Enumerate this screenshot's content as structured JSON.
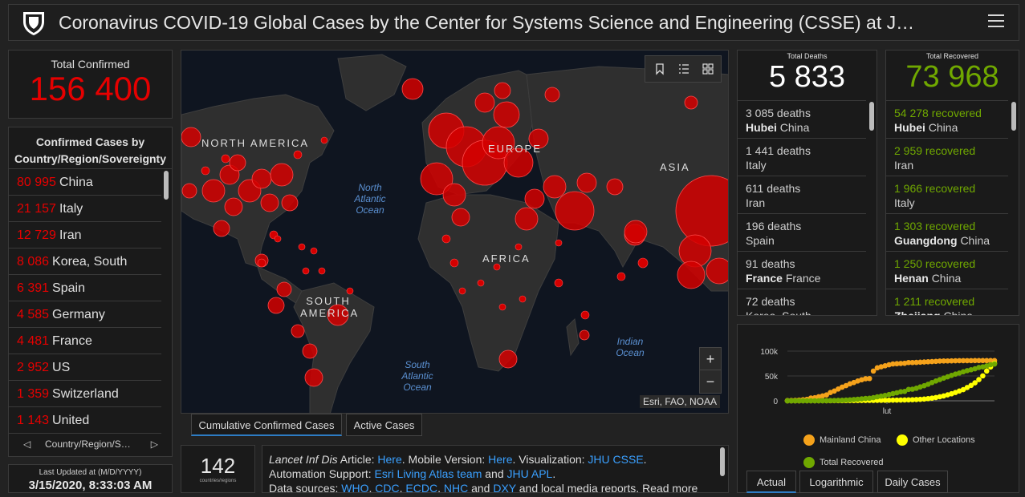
{
  "header": {
    "title": "Coronavirus COVID-19 Global Cases by the Center for Systems Science and Engineering (CSSE) at J…"
  },
  "total_confirmed": {
    "label": "Total Confirmed",
    "value": "156 400"
  },
  "country_panel": {
    "header": "Confirmed Cases by Country/Region/Sovereignty",
    "rows": [
      {
        "value": "80 995",
        "name": "China"
      },
      {
        "value": "21 157",
        "name": "Italy"
      },
      {
        "value": "12 729",
        "name": "Iran"
      },
      {
        "value": "8 086",
        "name": "Korea, South"
      },
      {
        "value": "6 391",
        "name": "Spain"
      },
      {
        "value": "4 585",
        "name": "Germany"
      },
      {
        "value": "4 481",
        "name": "France"
      },
      {
        "value": "2 952",
        "name": "US"
      },
      {
        "value": "1 359",
        "name": "Switzerland"
      },
      {
        "value": "1 143",
        "name": "United"
      }
    ],
    "pager_label": "Country/Region/S…"
  },
  "last_updated": {
    "label": "Last Updated at (M/D/YYYY)",
    "value": "3/15/2020, 8:33:03 AM"
  },
  "map": {
    "labels": {
      "north_america": "NORTH AMERICA",
      "europe": "EUROPE",
      "asia": "ASIA",
      "africa": "AFRICA",
      "south_america": "SOUTH AMERICA"
    },
    "oceans": {
      "north_atlantic": "North Atlantic Ocean",
      "south_atlantic": "South Atlantic Ocean",
      "indian": "Indian Ocean"
    },
    "attribution": "Esri, FAO, NOAA",
    "zoom_in": "+",
    "zoom_out": "−",
    "bubble_color": "#e60000"
  },
  "map_tabs": [
    {
      "label": "Cumulative Confirmed Cases",
      "active": true
    },
    {
      "label": "Active Cases",
      "active": false
    }
  ],
  "countries_count": {
    "value": "142",
    "sublabel": "countries/regions"
  },
  "info": {
    "journal": "Lancet Inf Dis",
    "article_prefix": " Article: ",
    "here1": "Here",
    "mobile": ". Mobile Version: ",
    "here2": "Here",
    "viz": ". Visualization: ",
    "jhu_csse": "JHU CSSE",
    "dot1": ".",
    "automation": "Automation Support: ",
    "esri": "Esri Living Atlas team",
    "and1": " and ",
    "jhu_apl": "JHU APL",
    "dot2": ".",
    "sources": "Data sources: ",
    "who": "WHO",
    "cdc": "CDC",
    "ecdc": "ECDC",
    "nhc": "NHC",
    "dxy": "DXY",
    "tail": " and local media reports. Read more"
  },
  "deaths": {
    "label": "Total Deaths",
    "value": "5 833",
    "rows": [
      {
        "count": "3 085 deaths",
        "region": "Hubei",
        "country": "China"
      },
      {
        "count": "1 441 deaths",
        "region": "",
        "country": "Italy"
      },
      {
        "count": "611 deaths",
        "region": "",
        "country": "Iran"
      },
      {
        "count": "196 deaths",
        "region": "",
        "country": "Spain"
      },
      {
        "count": "91 deaths",
        "region": "France",
        "country": "France"
      },
      {
        "count": "72 deaths",
        "region": "",
        "country": "Korea, South"
      }
    ]
  },
  "recovered": {
    "label": "Total Recovered",
    "value": "73 968",
    "rows": [
      {
        "count": "54 278 recovered",
        "region": "Hubei",
        "country": "China"
      },
      {
        "count": "2 959 recovered",
        "region": "",
        "country": "Iran"
      },
      {
        "count": "1 966 recovered",
        "region": "",
        "country": "Italy"
      },
      {
        "count": "1 303 recovered",
        "region": "Guangdong",
        "country": "China"
      },
      {
        "count": "1 250 recovered",
        "region": "Henan",
        "country": "China"
      },
      {
        "count": "1 211 recovered",
        "region": "Zhejiang",
        "country": "China"
      }
    ]
  },
  "chart_tabs": [
    {
      "label": "Actual",
      "active": true
    },
    {
      "label": "Logarithmic",
      "active": false
    },
    {
      "label": "Daily Cases",
      "active": false
    }
  ],
  "chart_data": {
    "type": "scatter",
    "title": "",
    "xlabel": "",
    "ylabel": "",
    "x_ticks": [
      "lut"
    ],
    "y_ticks": [
      "100k",
      "50k",
      "0"
    ],
    "ylim": [
      0,
      100000
    ],
    "n_points": 54,
    "legend_placement": "bottom",
    "series": [
      {
        "name": "Mainland China",
        "color": "#f5a21b",
        "values": [
          548,
          643,
          920,
          1406,
          2075,
          2877,
          5509,
          6087,
          8141,
          9802,
          11891,
          16630,
          19716,
          23707,
          27440,
          30587,
          34110,
          36814,
          39829,
          42354,
          44386,
          44759,
          59895,
          66358,
          68413,
          70513,
          72434,
          74211,
          74619,
          75077,
          75550,
          77001,
          77022,
          77241,
          77754,
          78166,
          78600,
          78928,
          79356,
          79932,
          80136,
          80261,
          80386,
          80537,
          80690,
          80770,
          80823,
          80860,
          80887,
          80921,
          80932,
          80945,
          80977,
          80995
        ]
      },
      {
        "name": "Other Locations",
        "color": "#ffff00",
        "values": [
          7,
          11,
          21,
          28,
          43,
          49,
          72,
          93,
          123,
          153,
          166,
          205,
          260,
          304,
          348,
          403,
          443,
          519,
          590,
          690,
          756,
          803,
          826,
          900,
          990,
          1080,
          1190,
          1290,
          1400,
          1520,
          1680,
          1960,
          2220,
          2580,
          2970,
          3570,
          4290,
          5420,
          6620,
          8110,
          9850,
          12000,
          14140,
          16730,
          19650,
          22500,
          26700,
          31000,
          36200,
          42600,
          50200,
          59900,
          68000,
          75400
        ]
      },
      {
        "name": "Total Recovered",
        "color": "#70a800",
        "values": [
          28,
          30,
          36,
          39,
          52,
          61,
          107,
          126,
          143,
          222,
          284,
          472,
          623,
          852,
          1124,
          1487,
          2011,
          2616,
          3244,
          3946,
          4683,
          5150,
          6295,
          8058,
          9395,
          10865,
          12583,
          14352,
          16121,
          18177,
          18890,
          22886,
          23394,
          25227,
          27905,
          30384,
          33277,
          36711,
          39782,
          42716,
          45602,
          48228,
          51171,
          53796,
          55865,
          58359,
          60694,
          62494,
          64404,
          67003,
          68324,
          70251,
          72624,
          73968
        ]
      }
    ]
  }
}
